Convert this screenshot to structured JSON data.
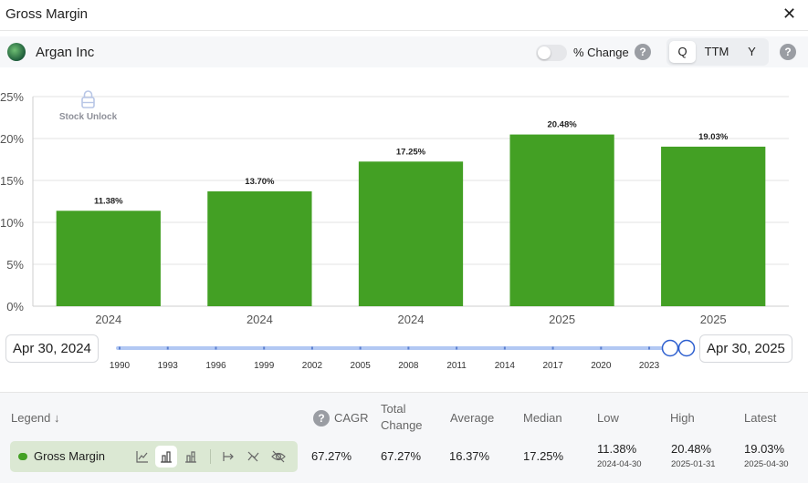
{
  "header": {
    "title": "Gross Margin",
    "close_icon": "close-icon"
  },
  "controls": {
    "company": "Argan Inc",
    "pct_change_label": "% Change",
    "periods": [
      "Q",
      "TTM",
      "Y"
    ],
    "active_period": "Q"
  },
  "watermark": {
    "text": "Stock Unlock",
    "icon": "lock-icon"
  },
  "chart_data": {
    "type": "bar",
    "categories": [
      "2024",
      "2024",
      "2024",
      "2025",
      "2025"
    ],
    "values": [
      11.38,
      13.7,
      17.25,
      20.48,
      19.03
    ],
    "data_labels": [
      "11.38%",
      "13.70%",
      "17.25%",
      "20.48%",
      "19.03%"
    ],
    "yticks": [
      "0%",
      "5%",
      "10%",
      "15%",
      "20%",
      "25%"
    ],
    "ylim": [
      0,
      25
    ],
    "grid": true,
    "bar_color": "#43a024"
  },
  "range": {
    "start_label": "Apr 30, 2024",
    "end_label": "Apr 30, 2025",
    "ticks": [
      "1990",
      "1993",
      "1996",
      "1999",
      "2002",
      "2005",
      "2008",
      "2011",
      "2014",
      "2017",
      "2020",
      "2023"
    ],
    "timeline_start": 1990,
    "timeline_end": 2025.33,
    "selected_start": 2024.33,
    "selected_end": 2025.33
  },
  "stats": {
    "legend_header": "Legend",
    "cagr_label": "CAGR",
    "total_change_label": "Total Change",
    "average_label": "Average",
    "median_label": "Median",
    "low_label": "Low",
    "high_label": "High",
    "latest_label": "Latest",
    "series_name": "Gross Margin",
    "series_color": "#43a024",
    "cagr": "67.27%",
    "total_change": "67.27%",
    "average": "16.37%",
    "median": "17.25%",
    "low": "11.38%",
    "low_date": "2024-04-30",
    "high": "20.48%",
    "high_date": "2025-01-31",
    "latest": "19.03%",
    "latest_date": "2025-04-30"
  }
}
